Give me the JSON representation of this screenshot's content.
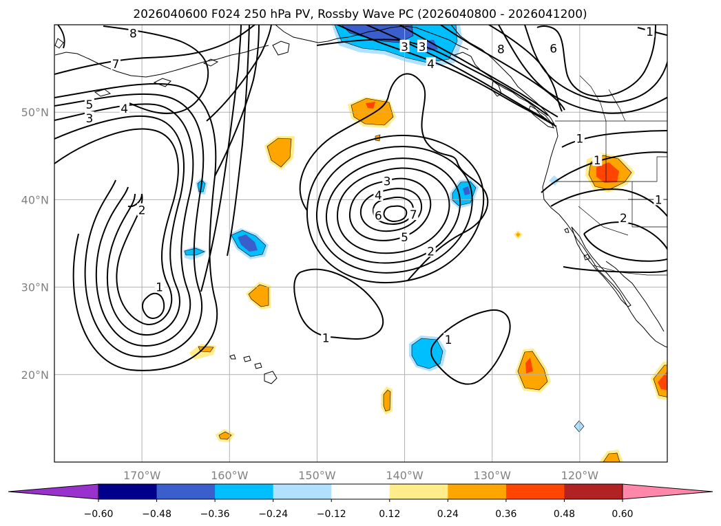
{
  "title": "2026040600 F024 250 hPa PV, Rossby Wave PC (2026040800 - 2026041200)",
  "lat_ticks": [
    {
      "label": "50°N",
      "lat": 50
    },
    {
      "label": "40°N",
      "lat": 40
    },
    {
      "label": "30°N",
      "lat": 30
    },
    {
      "label": "20°N",
      "lat": 20
    }
  ],
  "lon_ticks": [
    {
      "label": "170°W",
      "lon": -170
    },
    {
      "label": "160°W",
      "lon": -160
    },
    {
      "label": "150°W",
      "lon": -150
    },
    {
      "label": "140°W",
      "lon": -140
    },
    {
      "label": "130°W",
      "lon": -130
    },
    {
      "label": "120°W",
      "lon": -120
    }
  ],
  "map_extent": {
    "lon_min": -180,
    "lon_max": -110,
    "lat_min": 10,
    "lat_max": 60
  },
  "colorbar": {
    "ticks": [
      "−0.60",
      "−0.48",
      "−0.36",
      "−0.24",
      "−0.12",
      "0.12",
      "0.24",
      "0.36",
      "0.48",
      "0.60"
    ],
    "under_color": "#9932cc",
    "over_color": "#ff88aa",
    "colors": [
      "#00008b",
      "#3a5fcd",
      "#00bfff",
      "#b0e2ff",
      "#ffffff",
      "#ffec8b",
      "#ffa500",
      "#ff4500",
      "#b22222"
    ]
  },
  "contour_labels": [
    {
      "text": "8",
      "lon": -171,
      "lat": 59
    },
    {
      "text": "7",
      "lon": -173,
      "lat": 55.5
    },
    {
      "text": "5",
      "lon": -176,
      "lat": 50.9
    },
    {
      "text": "4",
      "lon": -172,
      "lat": 50.4
    },
    {
      "text": "3",
      "lon": -176,
      "lat": 49.3
    },
    {
      "text": "2",
      "lon": -170,
      "lat": 38.8
    },
    {
      "text": "1",
      "lon": -168,
      "lat": 30
    },
    {
      "text": "3",
      "lon": -142,
      "lat": 42.1
    },
    {
      "text": "4",
      "lon": -143,
      "lat": 40.5
    },
    {
      "text": "6",
      "lon": -143,
      "lat": 38.2
    },
    {
      "text": "7",
      "lon": -139,
      "lat": 38.3
    },
    {
      "text": "5",
      "lon": -140,
      "lat": 35.7
    },
    {
      "text": "2",
      "lon": -137,
      "lat": 34.1
    },
    {
      "text": "1",
      "lon": -149,
      "lat": 24.2
    },
    {
      "text": "1",
      "lon": -135,
      "lat": 24
    },
    {
      "text": "3",
      "lon": -140,
      "lat": 57.5
    },
    {
      "text": "3",
      "lon": -138,
      "lat": 57.5
    },
    {
      "text": "4",
      "lon": -137,
      "lat": 55.5
    },
    {
      "text": "8",
      "lon": -129,
      "lat": 57.2
    },
    {
      "text": "6",
      "lon": -123,
      "lat": 57.3
    },
    {
      "text": "1",
      "lon": -112,
      "lat": 59.2
    },
    {
      "text": "1",
      "lon": -120,
      "lat": 47
    },
    {
      "text": "1",
      "lon": -118,
      "lat": 44.5
    },
    {
      "text": "2",
      "lon": -115,
      "lat": 37.9
    },
    {
      "text": "1",
      "lon": -111,
      "lat": 40
    }
  ]
}
